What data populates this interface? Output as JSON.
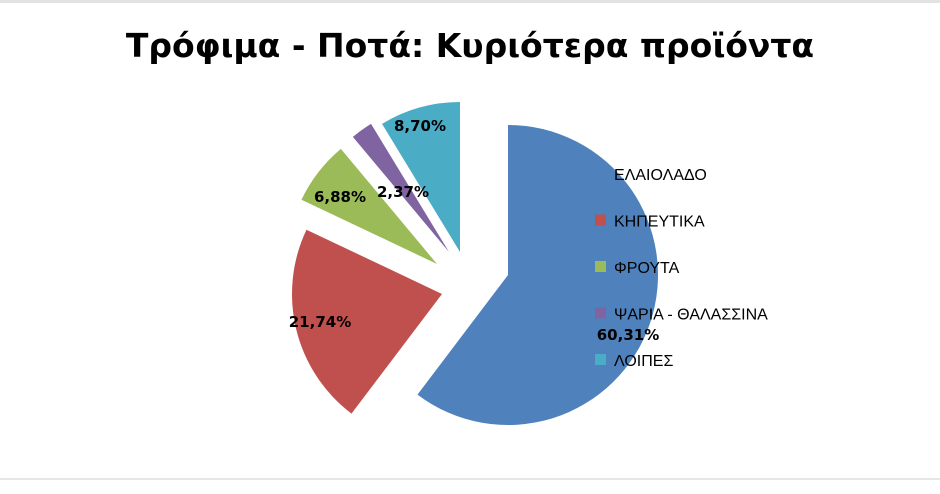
{
  "chart_data": {
    "type": "pie",
    "title": "Τρόφιμα - Ποτά: Κυριότερα προϊόντα",
    "categories": [
      "ΕΛΑΙΟΛΑΔΟ",
      "ΚΗΠΕΥΤΙΚΑ",
      "ΦΡΟΥΤΑ",
      "ΨΑΡΙΑ - ΘΑΛΑΣΣΙΝΑ",
      "ΛΟΙΠΕΣ"
    ],
    "values": [
      60.31,
      21.74,
      6.88,
      2.37,
      8.7
    ],
    "data_labels": [
      "60,31%",
      "21,74%",
      "6,88%",
      "2,37%",
      "8,70%"
    ],
    "colors": [
      "#4f81bd",
      "#c0504d",
      "#9bbb59",
      "#8064a2",
      "#4bacc6"
    ],
    "exploded": true,
    "legend_position": "right"
  }
}
